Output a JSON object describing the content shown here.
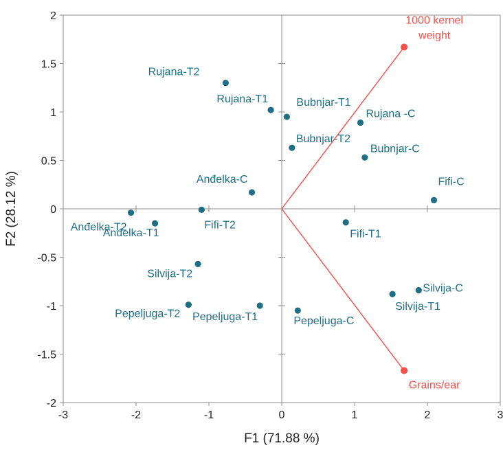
{
  "chart_data": {
    "type": "scatter",
    "title": "",
    "xlabel": "F1 (71.88 %)",
    "ylabel": "F2 (28.12 %)",
    "xlim": [
      -3,
      3
    ],
    "ylim": [
      -2,
      2
    ],
    "xticks": [
      -3,
      -2,
      -1,
      0,
      1,
      2,
      3
    ],
    "yticks": [
      -2,
      -1.5,
      -1,
      -0.5,
      0,
      0.5,
      1,
      1.5,
      2
    ],
    "xtick_labels": [
      "-3",
      "-2",
      "-1",
      "0",
      "1",
      "2",
      "3"
    ],
    "ytick_labels": [
      "-2",
      "-1.5",
      "-1",
      "-0.5",
      "0",
      "0.5",
      "1",
      "1.5",
      "2"
    ],
    "grid": false,
    "observations": {
      "color": "#1f6e84",
      "points": [
        {
          "label": "Rujana-T2",
          "x": -0.77,
          "y": 1.3
        },
        {
          "label": "Rujana-T1",
          "x": -0.15,
          "y": 1.02
        },
        {
          "label": "Bubnjar-T1",
          "x": 0.07,
          "y": 0.95
        },
        {
          "label": "Rujana -C",
          "x": 1.08,
          "y": 0.89
        },
        {
          "label": "Bubnjar-T2",
          "x": 0.14,
          "y": 0.63
        },
        {
          "label": "Bubnjar-C",
          "x": 1.14,
          "y": 0.53
        },
        {
          "label": "Anđelka-C",
          "x": -0.41,
          "y": 0.17
        },
        {
          "label": "Fifi-C",
          "x": 2.09,
          "y": 0.09
        },
        {
          "label": "Anđelka-T2",
          "x": -2.07,
          "y": -0.04
        },
        {
          "label": "Fifi-T2",
          "x": -1.1,
          "y": -0.01
        },
        {
          "label": "Anđelka-T1",
          "x": -1.74,
          "y": -0.15
        },
        {
          "label": "Fifi-T1",
          "x": 0.88,
          "y": -0.14
        },
        {
          "label": "Silvija-T2",
          "x": -1.15,
          "y": -0.57
        },
        {
          "label": "Silvija-C",
          "x": 1.88,
          "y": -0.84
        },
        {
          "label": "Silvija-T1",
          "x": 1.52,
          "y": -0.88
        },
        {
          "label": "Pepeljuga-T2",
          "x": -1.28,
          "y": -0.99
        },
        {
          "label": "Pepeljuga-T1",
          "x": -0.3,
          "y": -1.0
        },
        {
          "label": "Pepeljuga-C",
          "x": 0.22,
          "y": -1.05
        }
      ]
    },
    "variables": {
      "color": "#f0504a",
      "vectors": [
        {
          "label_lines": [
            "1000 kernel",
            "weight"
          ],
          "x": 1.68,
          "y": 1.67
        },
        {
          "label_lines": [
            "Grains/ear"
          ],
          "x": 1.68,
          "y": -1.67
        }
      ]
    }
  }
}
